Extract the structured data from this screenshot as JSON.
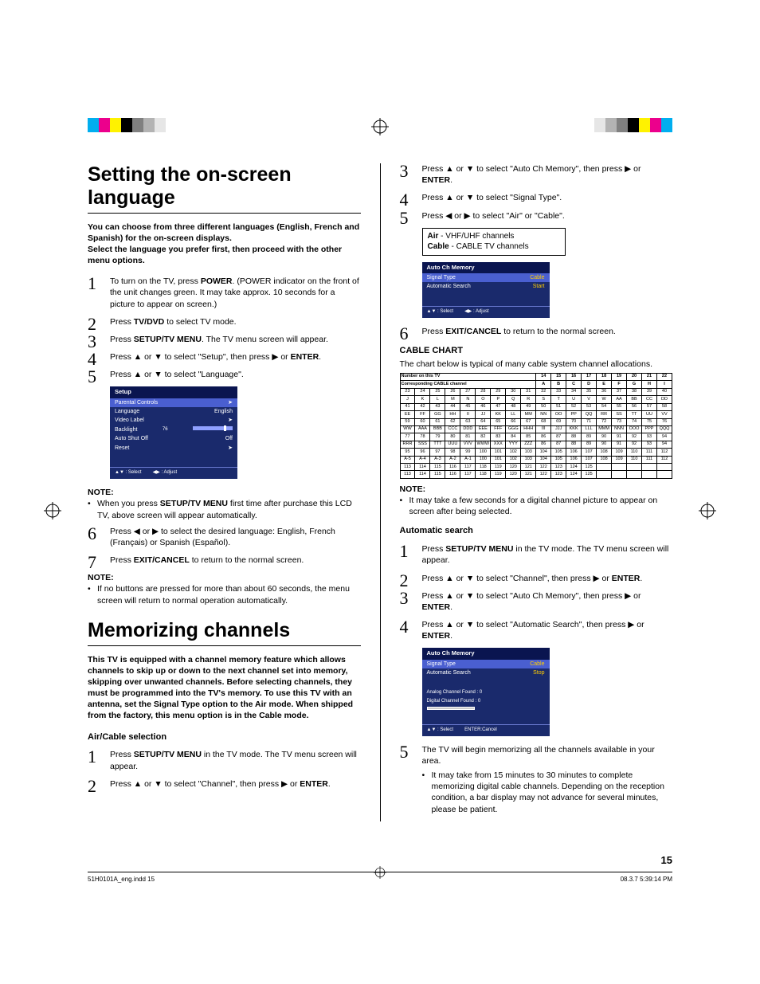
{
  "registration": {
    "colors_left": [
      "#00aeef",
      "#ec008c",
      "#fff200",
      "#000000",
      "#808080",
      "#b3b3b3",
      "#e6e6e6"
    ],
    "colors_right": [
      "#e6e6e6",
      "#b3b3b3",
      "#808080",
      "#000000",
      "#fff200",
      "#ec008c",
      "#00aeef"
    ]
  },
  "left": {
    "h1": "Setting the on-screen language",
    "intro": "You can choose from three different languages (English, French and Spanish) for the on-screen displays.\nSelect the language you prefer first, then proceed with the other menu options.",
    "steps1": [
      {
        "n": "1",
        "t": "To turn on the TV, press <b>POWER</b>. (POWER indicator on the front of the unit changes green. It may take approx. 10 seconds for a picture to appear on screen.)"
      },
      {
        "n": "2",
        "t": "Press <b>TV/DVD</b> to select TV mode."
      },
      {
        "n": "3",
        "t": "Press <b>SETUP/TV MENU</b>. The TV menu screen will appear."
      },
      {
        "n": "4",
        "t": "Press ▲ or ▼ to select \"Setup\", then press ▶ or <b>ENTER</b>."
      },
      {
        "n": "5",
        "t": "Press ▲ or ▼ to select \"Language\"."
      }
    ],
    "osd1": {
      "title": "Setup",
      "rows": [
        {
          "l": "Parental Controls",
          "r": "➤",
          "hi": true
        },
        {
          "l": "Language",
          "r": "English"
        },
        {
          "l": "Video Label",
          "r": "➤"
        },
        {
          "l": "Backlight",
          "r": "",
          "slider": true,
          "val": "76"
        },
        {
          "l": "Auto Shut Off",
          "r": "Off"
        },
        {
          "l": "Reset",
          "r": "➤"
        }
      ],
      "foot_l": "▲▼ : Select",
      "foot_r": "◀▶ : Adjust"
    },
    "note1_hd": "NOTE:",
    "note1": "When you press <b>SETUP/TV MENU</b> first time after purchase this LCD TV, above screen will appear automatically.",
    "steps2": [
      {
        "n": "6",
        "t": "Press ◀ or ▶ to select the desired language: English, French (Français) or Spanish (Español)."
      },
      {
        "n": "7",
        "t": "Press <b>EXIT/CANCEL</b> to return to the normal screen."
      }
    ],
    "note2_hd": "NOTE:",
    "note2": "If no buttons are pressed for more than about 60 seconds, the menu screen will return to normal operation automatically.",
    "h2": "Memorizing channels",
    "intro2": "This TV is equipped with a channel memory feature which allows channels to skip up or down to the next channel set into memory, skipping over unwanted channels. Before selecting channels, they must be programmed into the TV's memory. To use this TV with an antenna, set the Signal Type option to the Air mode. When shipped from the factory, this menu option is in the Cable mode.",
    "sub1": "Air/Cable selection",
    "steps3": [
      {
        "n": "1",
        "t": "Press <b>SETUP/TV MENU</b> in the TV mode. The TV menu screen will appear."
      },
      {
        "n": "2",
        "t": "Press ▲ or ▼ to select  \"Channel\", then press ▶ or <b>ENTER</b>."
      }
    ]
  },
  "right": {
    "steps4": [
      {
        "n": "3",
        "t": "Press ▲ or ▼ to select \"Auto Ch Memory\", then press ▶ or <b>ENTER</b>."
      },
      {
        "n": "4",
        "t": "Press ▲ or ▼ to select \"Signal Type\"."
      },
      {
        "n": "5",
        "t": "Press ◀ or ▶ to select \"Air\" or \"Cable\"."
      }
    ],
    "infobox": [
      "<b>Air</b> - VHF/UHF channels",
      "<b>Cable</b> - CABLE TV channels"
    ],
    "osd2": {
      "title": "Auto Ch Memory",
      "rows": [
        {
          "l": "Signal Type",
          "r": "Cable",
          "hi": true,
          "yel": true
        },
        {
          "l": "Automatic Search",
          "r": "Start",
          "yel": true
        }
      ],
      "foot_l": "▲▼ : Select",
      "foot_r": "◀▶ : Adjust"
    },
    "steps5": [
      {
        "n": "6",
        "t": "Press <b>EXIT/CANCEL</b> to return to the normal screen."
      }
    ],
    "cable_hd": "CABLE CHART",
    "cable_intro": "The chart below is typical of many cable system channel allocations.",
    "cable_header1": "Number on this TV",
    "cable_header2": "Corresponding CABLE channel",
    "cable_rows": [
      [
        "",
        "",
        "",
        "",
        "",
        "",
        "",
        "",
        "",
        "14",
        "15",
        "16",
        "17",
        "18",
        "19",
        "20",
        "21",
        "22"
      ],
      [
        "",
        "",
        "",
        "",
        "",
        "",
        "",
        "",
        "",
        "A",
        "B",
        "C",
        "D",
        "E",
        "F",
        "G",
        "H",
        "I"
      ],
      [
        "23",
        "24",
        "25",
        "26",
        "27",
        "28",
        "29",
        "30",
        "31",
        "32",
        "33",
        "34",
        "35",
        "36",
        "37",
        "38",
        "39",
        "40"
      ],
      [
        "J",
        "K",
        "L",
        "M",
        "N",
        "O",
        "P",
        "Q",
        "R",
        "S",
        "T",
        "U",
        "V",
        "W",
        "AA",
        "BB",
        "CC",
        "DD"
      ],
      [
        "41",
        "42",
        "43",
        "44",
        "45",
        "46",
        "47",
        "48",
        "49",
        "50",
        "51",
        "52",
        "53",
        "54",
        "55",
        "56",
        "57",
        "58"
      ],
      [
        "EE",
        "FF",
        "GG",
        "HH",
        "II",
        "JJ",
        "KK",
        "LL",
        "MM",
        "NN",
        "OO",
        "PP",
        "QQ",
        "RR",
        "SS",
        "TT",
        "UU",
        "VV"
      ],
      [
        "59",
        "60",
        "61",
        "62",
        "63",
        "64",
        "65",
        "66",
        "67",
        "68",
        "69",
        "70",
        "71",
        "72",
        "73",
        "74",
        "75",
        "76"
      ],
      [
        "WW",
        "AAA",
        "BBB",
        "CCC",
        "DDD",
        "EEE",
        "FFF",
        "GGG",
        "HHH",
        "III",
        "JJJ",
        "KKK",
        "LLL",
        "MMM",
        "NNN",
        "OOO",
        "PPP",
        "QQQ"
      ],
      [
        "77",
        "78",
        "79",
        "80",
        "81",
        "82",
        "83",
        "84",
        "85",
        "86",
        "87",
        "88",
        "89",
        "90",
        "91",
        "92",
        "93",
        "94"
      ],
      [
        "RRR",
        "SSS",
        "TTT",
        "UUU",
        "VVV",
        "WWW",
        "XXX",
        "YYY",
        "ZZZ",
        "86",
        "87",
        "88",
        "89",
        "90",
        "91",
        "92",
        "93",
        "94"
      ],
      [
        "95",
        "96",
        "97",
        "98",
        "99",
        "100",
        "101",
        "102",
        "103",
        "104",
        "105",
        "106",
        "107",
        "108",
        "109",
        "110",
        "111",
        "112"
      ],
      [
        "A-5",
        "A-4",
        "A-3",
        "A-2",
        "A-1",
        "100",
        "101",
        "102",
        "103",
        "104",
        "105",
        "106",
        "107",
        "108",
        "109",
        "110",
        "111",
        "112"
      ],
      [
        "113",
        "114",
        "115",
        "116",
        "117",
        "118",
        "119",
        "120",
        "121",
        "122",
        "123",
        "124",
        "125",
        "",
        "",
        "",
        "",
        ""
      ],
      [
        "113",
        "114",
        "115",
        "116",
        "117",
        "118",
        "119",
        "120",
        "121",
        "122",
        "123",
        "124",
        "125",
        "",
        "",
        "",
        "",
        ""
      ]
    ],
    "note3_hd": "NOTE:",
    "note3": "It may take a few seconds for a digital channel picture to appear on screen after being selected.",
    "sub2": "Automatic search",
    "steps6": [
      {
        "n": "1",
        "t": "Press <b>SETUP/TV MENU</b> in the TV mode. The TV menu screen will appear."
      },
      {
        "n": "2",
        "t": "Press ▲ or ▼ to select \"Channel\", then press ▶ or <b>ENTER</b>."
      },
      {
        "n": "3",
        "t": "Press ▲ or ▼ to select \"Auto Ch Memory\", then press ▶ or <b>ENTER</b>."
      },
      {
        "n": "4",
        "t": "Press ▲ or ▼ to select \"Automatic Search\", then press ▶ or <b>ENTER</b>."
      }
    ],
    "osd3": {
      "title": "Auto Ch Memory",
      "rows": [
        {
          "l": "Signal Type",
          "r": "Cable",
          "hi": true,
          "yel": true
        },
        {
          "l": "Automatic Search",
          "r": "Stop",
          "yel": true
        }
      ],
      "mid": [
        "Analog Channel Found : 0",
        "Digital Channel Found : 0"
      ],
      "foot_l": "▲▼ : Select",
      "foot_r": "ENTER:Cancel"
    },
    "steps7": [
      {
        "n": "5",
        "t": "The TV will begin memorizing all the channels available in your area.",
        "sub": "It may take from 15 minutes to 30 minutes to complete memorizing digital cable channels. Depending on the reception condition, a bar display may not advance for several minutes, please be patient."
      }
    ]
  },
  "page_num": "15",
  "footer_l": "51H0101A_eng.indd   15",
  "footer_r": "08.3.7   5:39:14 PM"
}
